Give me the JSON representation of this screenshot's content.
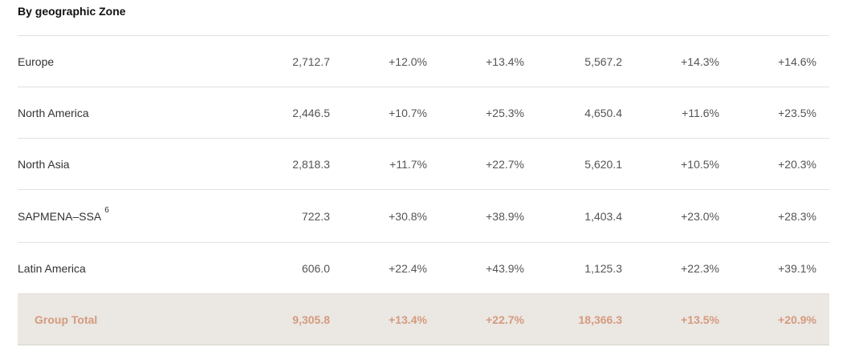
{
  "section_title": "By geographic Zone",
  "rows": [
    {
      "zone": "Europe",
      "v1": "2,712.7",
      "v2": "+12.0%",
      "v3": "+13.4%",
      "v4": "5,567.2",
      "v5": "+14.3%",
      "v6": "+14.6%"
    },
    {
      "zone": "North America",
      "v1": "2,446.5",
      "v2": "+10.7%",
      "v3": "+25.3%",
      "v4": "4,650.4",
      "v5": "+11.6%",
      "v6": "+23.5%"
    },
    {
      "zone": "North Asia",
      "v1": "2,818.3",
      "v2": "+11.7%",
      "v3": "+22.7%",
      "v4": "5,620.1",
      "v5": "+10.5%",
      "v6": "+20.3%"
    },
    {
      "zone": "SAPMENA–SSA",
      "note": "6",
      "v1": "722.3",
      "v2": "+30.8%",
      "v3": "+38.9%",
      "v4": "1,403.4",
      "v5": "+23.0%",
      "v6": "+28.3%"
    },
    {
      "zone": "Latin America",
      "v1": "606.0",
      "v2": "+22.4%",
      "v3": "+43.9%",
      "v4": "1,125.3",
      "v5": "+22.3%",
      "v6": "+39.1%"
    }
  ],
  "total": {
    "label": "Group Total",
    "v1": "9,305.8",
    "v2": "+13.4%",
    "v3": "+22.7%",
    "v4": "18,366.3",
    "v5": "+13.5%",
    "v6": "+20.9%"
  },
  "colors": {
    "total_text": "#d49a7e",
    "total_background": "#ebe7e2",
    "divider": "#e3e1de"
  }
}
